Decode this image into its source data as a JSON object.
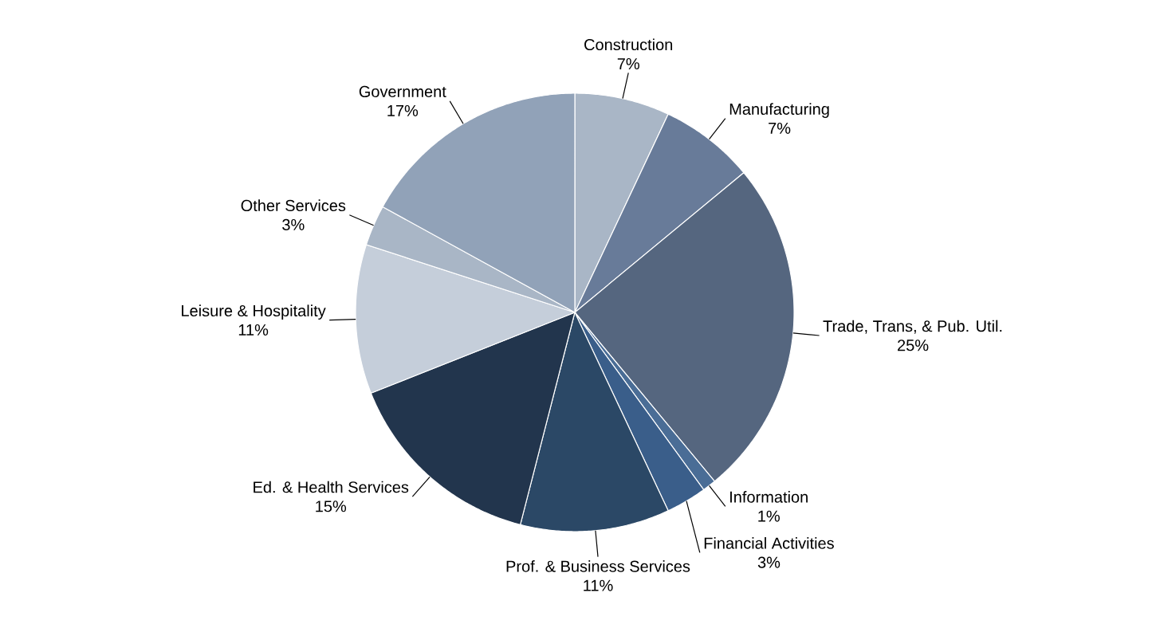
{
  "chart_data": {
    "type": "pie",
    "categories": [
      "Construction",
      "Manufacturing",
      "Trade, Trans, & Pub. Util.",
      "Information",
      "Financial Activities",
      "Prof. & Business Services",
      "Ed. & Health Services",
      "Leisure & Hospitality",
      "Other Services",
      "Government"
    ],
    "values": [
      7,
      7,
      25,
      1,
      3,
      11,
      15,
      11,
      3,
      17
    ],
    "value_labels": [
      "7%",
      "7%",
      "25%",
      "1%",
      "3%",
      "11%",
      "15%",
      "11%",
      "3%",
      "17%"
    ],
    "colors": [
      "#a9b6c6",
      "#687b99",
      "#55667f",
      "#4a6d96",
      "#3a5e8a",
      "#2b4866",
      "#22354d",
      "#c5ceda",
      "#a9b6c6",
      "#91a2b8"
    ]
  }
}
